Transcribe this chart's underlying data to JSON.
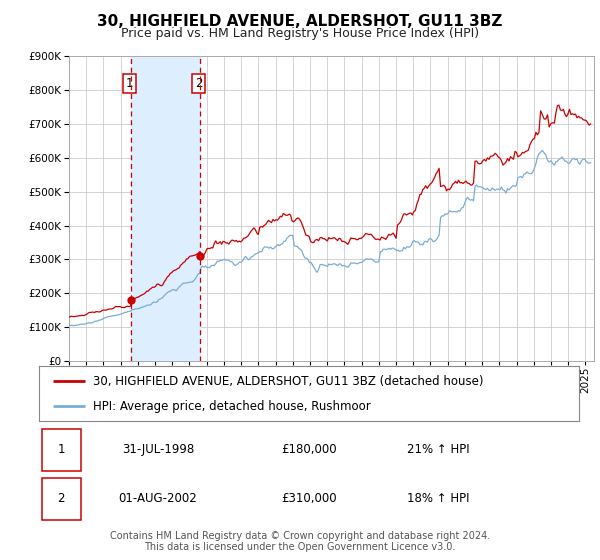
{
  "title": "30, HIGHFIELD AVENUE, ALDERSHOT, GU11 3BZ",
  "subtitle": "Price paid vs. HM Land Registry's House Price Index (HPI)",
  "ylim": [
    0,
    900000
  ],
  "yticks": [
    0,
    100000,
    200000,
    300000,
    400000,
    500000,
    600000,
    700000,
    800000,
    900000
  ],
  "ytick_labels": [
    "£0",
    "£100K",
    "£200K",
    "£300K",
    "£400K",
    "£500K",
    "£600K",
    "£700K",
    "£800K",
    "£900K"
  ],
  "xlim_start": 1995.0,
  "xlim_end": 2025.5,
  "sale1_x": 1998.58,
  "sale1_y": 180000,
  "sale2_x": 2002.585,
  "sale2_y": 310000,
  "vline1_x": 1998.58,
  "vline2_x": 2002.585,
  "shade_start": 1998.58,
  "shade_end": 2002.585,
  "legend_line1": "30, HIGHFIELD AVENUE, ALDERSHOT, GU11 3BZ (detached house)",
  "legend_line2": "HPI: Average price, detached house, Rushmoor",
  "table_row1_num": "1",
  "table_row1_date": "31-JUL-1998",
  "table_row1_price": "£180,000",
  "table_row1_hpi": "21% ↑ HPI",
  "table_row2_num": "2",
  "table_row2_date": "01-AUG-2002",
  "table_row2_price": "£310,000",
  "table_row2_hpi": "18% ↑ HPI",
  "footer1": "Contains HM Land Registry data © Crown copyright and database right 2024.",
  "footer2": "This data is licensed under the Open Government Licence v3.0.",
  "red_color": "#cc0000",
  "blue_color": "#7aadd4",
  "shade_color": "#ddeeff",
  "grid_color": "#cccccc",
  "title_fontsize": 11,
  "subtitle_fontsize": 9,
  "axis_fontsize": 7.5,
  "legend_fontsize": 8.5,
  "table_fontsize": 8.5,
  "footer_fontsize": 7
}
